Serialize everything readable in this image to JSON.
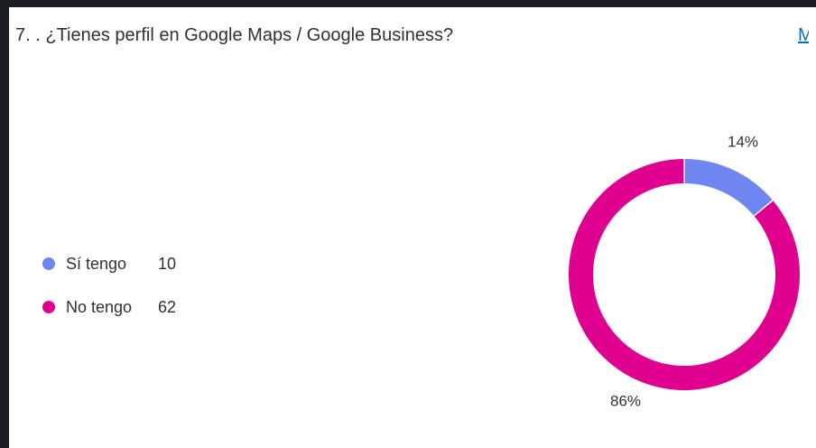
{
  "question": {
    "title": "7. . ¿Tienes perfil en Google Maps / Google Business?",
    "more_link": "M"
  },
  "colors": {
    "si": "#6f86f0",
    "no": "#e0008f",
    "text": "#323130",
    "frame": "#1b1e24"
  },
  "legend": [
    {
      "label": "Sí tengo",
      "count": "10"
    },
    {
      "label": "No tengo",
      "count": "62"
    }
  ],
  "chart_data": {
    "type": "pie",
    "subtype": "donut",
    "categories": [
      "Sí tengo",
      "No tengo"
    ],
    "values": [
      10,
      62
    ],
    "percent_labels": [
      "14%",
      "86%"
    ],
    "colors": [
      "#6f86f0",
      "#e0008f"
    ],
    "legend_position": "left"
  }
}
